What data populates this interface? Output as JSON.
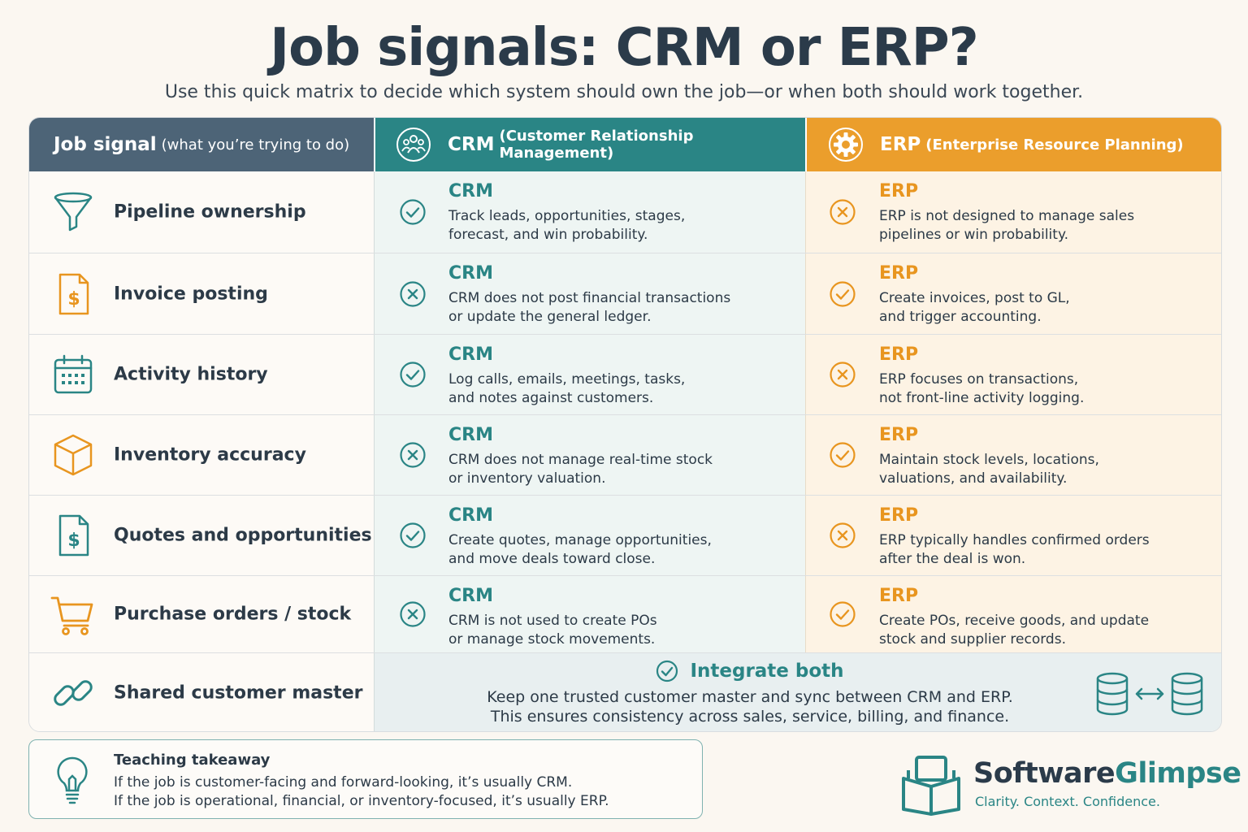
{
  "title": "Job signals: CRM or ERP?",
  "subtitle": "Use this quick matrix to decide which system should own the job—or when both should work together.",
  "colors": {
    "navy": "#4d6477",
    "teal": "#2a8585",
    "orange": "#eb9e2c",
    "background": "#fbf7f1"
  },
  "header": {
    "job": {
      "main": "Job signal",
      "sub": "(what you’re trying to do)"
    },
    "crm": {
      "main": "CRM",
      "sub": "(Customer Relationship Management)",
      "icon": "people-icon"
    },
    "erp": {
      "main": "ERP",
      "sub": "(Enterprise Resource Planning)",
      "icon": "gear-icon"
    }
  },
  "rows": [
    {
      "job": "Pipeline ownership",
      "icon": "funnel-icon",
      "crm": {
        "head": "CRM",
        "fit": "check",
        "line1": "Track leads, opportunities, stages,",
        "line2": "forecast, and win probability."
      },
      "erp": {
        "head": "ERP",
        "fit": "cross",
        "line1": "ERP is not designed to manage sales",
        "line2": "pipelines or win probability."
      }
    },
    {
      "job": "Invoice posting",
      "icon": "invoice-icon",
      "crm": {
        "head": "CRM",
        "fit": "cross",
        "line1": "CRM does not post financial transactions",
        "line2": "or update the general ledger."
      },
      "erp": {
        "head": "ERP",
        "fit": "check",
        "line1": "Create invoices, post to GL,",
        "line2": "and trigger accounting."
      }
    },
    {
      "job": "Activity history",
      "icon": "calendar-icon",
      "crm": {
        "head": "CRM",
        "fit": "check",
        "line1": "Log calls, emails, meetings, tasks,",
        "line2": "and notes against customers."
      },
      "erp": {
        "head": "ERP",
        "fit": "cross",
        "line1": "ERP focuses on transactions,",
        "line2": "not front-line activity logging."
      }
    },
    {
      "job": "Inventory accuracy",
      "icon": "box-icon",
      "crm": {
        "head": "CRM",
        "fit": "cross",
        "line1": "CRM does not manage real-time stock",
        "line2": "or inventory valuation."
      },
      "erp": {
        "head": "ERP",
        "fit": "check",
        "line1": "Maintain stock levels, locations,",
        "line2": "valuations, and availability."
      }
    },
    {
      "job": "Quotes and opportunities",
      "icon": "quote-icon",
      "crm": {
        "head": "CRM",
        "fit": "check",
        "line1": "Create quotes, manage opportunities,",
        "line2": "and move deals toward close."
      },
      "erp": {
        "head": "ERP",
        "fit": "cross",
        "line1": "ERP typically handles confirmed orders",
        "line2": "after the deal is won."
      }
    },
    {
      "job": "Purchase orders / stock",
      "icon": "cart-icon",
      "crm": {
        "head": "CRM",
        "fit": "cross",
        "line1": "CRM is not used to create POs",
        "line2": "or manage stock movements."
      },
      "erp": {
        "head": "ERP",
        "fit": "check",
        "line1": "Create POs, receive goods, and update",
        "line2": "stock and supplier records."
      }
    }
  ],
  "shared": {
    "job": "Shared customer master",
    "icon": "link-icon",
    "head": "Integrate both",
    "line1": "Keep one trusted customer master and sync between CRM and ERP.",
    "line2": "This ensures consistency across sales, service, billing, and finance."
  },
  "takeaway": {
    "head": "Teaching takeaway",
    "line1": "If the job is customer-facing and forward-looking, it’s usually CRM.",
    "line2": "If the job is operational, financial, or inventory-focused, it’s usually ERP."
  },
  "brand": {
    "name_part1": "Software",
    "name_part2": "Glimpse",
    "tagline": "Clarity. Context. Confidence."
  }
}
